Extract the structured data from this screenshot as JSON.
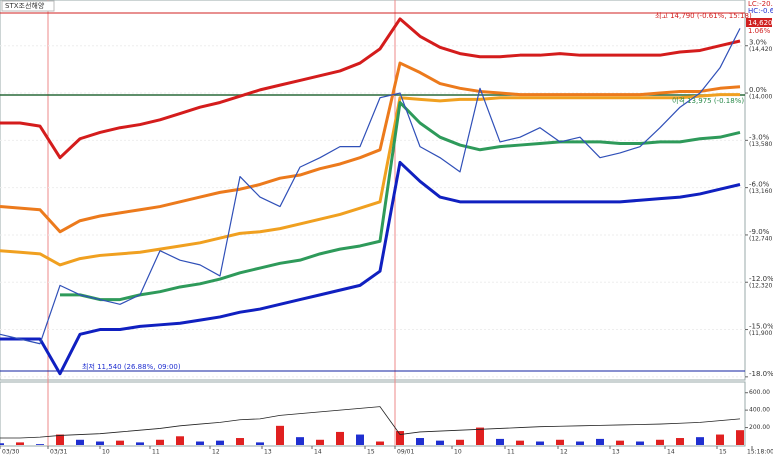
{
  "title": "STX조선해양",
  "corner_labels": [
    "LC:-20.86",
    "HC:-0.61"
  ],
  "annotations": [
    {
      "text": "최고 14,790 (-0.61%, 15:18)",
      "color": "#d02020"
    },
    {
      "text": "최저 11,540 (26.88%, 09:00)",
      "color": "#1f2fd0"
    },
    {
      "text": "이격 13,975 (-0.18%)",
      "color": "#2a8a4a"
    }
  ],
  "last_price": {
    "label": "14,620",
    "change": "1.06%"
  },
  "chart_data": [
    {
      "type": "line",
      "xlim": [
        0,
        37.25
      ],
      "ylim": [
        -18.2,
        5.9
      ],
      "yticks": [
        {
          "value": 3,
          "label": "3.0%"
        },
        {
          "value": 0,
          "label": "0.0%"
        },
        {
          "value": -3,
          "label": "-3.0%"
        },
        {
          "value": -6,
          "label": "-6.0%"
        },
        {
          "value": -9,
          "label": "-9.0%"
        },
        {
          "value": -12,
          "label": "-12.0%"
        },
        {
          "value": -15,
          "label": "-15.0%"
        },
        {
          "value": -18,
          "label": "-18.0%"
        }
      ],
      "y2lim": [
        11452,
        14826
      ],
      "y2ticks": [
        {
          "value": 14420,
          "label": "(14,420)"
        },
        {
          "value": 14000,
          "label": "(14,000)"
        },
        {
          "value": 13580,
          "label": "(13,580)"
        },
        {
          "value": 13160,
          "label": "(13,160)"
        },
        {
          "value": 12740,
          "label": "(12,740)"
        },
        {
          "value": 12320,
          "label": "(12,320)"
        },
        {
          "value": 11900,
          "label": "(11,900)"
        }
      ],
      "series": [
        {
          "color": "#d41c1c",
          "width": 3,
          "values": [
            -1.9,
            -1.9,
            -2.1,
            -4.1,
            -2.9,
            -2.5,
            -2.2,
            -2.0,
            -1.7,
            -1.3,
            -0.9,
            -0.6,
            -0.2,
            0.2,
            0.5,
            0.8,
            1.1,
            1.4,
            1.9,
            2.8,
            4.7,
            3.6,
            2.9,
            2.5,
            2.3,
            2.3,
            2.4,
            2.4,
            2.5,
            2.4,
            2.4,
            2.4,
            2.4,
            2.4,
            2.6,
            2.7,
            3.0,
            3.3
          ]
        },
        {
          "color": "#ec7a1c",
          "width": 3,
          "values": [
            -7.2,
            -7.3,
            -7.4,
            -8.8,
            -8.1,
            -7.8,
            -7.6,
            -7.4,
            -7.2,
            -6.9,
            -6.6,
            -6.3,
            -6.1,
            -5.8,
            -5.4,
            -5.2,
            -4.8,
            -4.5,
            -4.1,
            -3.6,
            1.9,
            1.3,
            0.6,
            0.3,
            0.1,
            0.0,
            -0.1,
            -0.1,
            -0.1,
            -0.1,
            -0.1,
            -0.1,
            -0.1,
            0.0,
            0.1,
            0.1,
            0.3,
            0.4
          ]
        },
        {
          "color": "#f0a020",
          "width": 3,
          "values": [
            -10.0,
            -10.1,
            -10.2,
            -10.9,
            -10.5,
            -10.3,
            -10.2,
            -10.1,
            -9.9,
            -9.7,
            -9.5,
            -9.2,
            -8.9,
            -8.8,
            -8.6,
            -8.3,
            -8.0,
            -7.7,
            -7.3,
            -6.9,
            -0.3,
            -0.4,
            -0.5,
            -0.4,
            -0.4,
            -0.3,
            -0.3,
            -0.3,
            -0.3,
            -0.3,
            -0.3,
            -0.3,
            -0.3,
            -0.3,
            -0.3,
            -0.2,
            -0.1,
            -0.1
          ]
        },
        {
          "color": "#2e9a5a",
          "width": 3,
          "values": [
            null,
            null,
            null,
            -12.8,
            -12.8,
            -13.1,
            -13.1,
            -12.8,
            -12.6,
            -12.3,
            -12.1,
            -11.8,
            -11.4,
            -11.1,
            -10.8,
            -10.6,
            -10.2,
            -9.9,
            -9.7,
            -9.4,
            -0.6,
            -1.9,
            -2.8,
            -3.3,
            -3.6,
            -3.4,
            -3.3,
            -3.2,
            -3.1,
            -3.1,
            -3.1,
            -3.2,
            -3.2,
            -3.1,
            -3.1,
            -2.9,
            -2.8,
            -2.5
          ]
        },
        {
          "color": "#1020c0",
          "width": 3,
          "values": [
            -15.6,
            -15.6,
            -15.6,
            -17.8,
            -15.3,
            -15.0,
            -15.0,
            -14.8,
            -14.7,
            -14.6,
            -14.4,
            -14.2,
            -13.9,
            -13.7,
            -13.4,
            -13.1,
            -12.8,
            -12.5,
            -12.2,
            -11.3,
            -4.4,
            -5.6,
            -6.6,
            -6.9,
            -6.9,
            -6.9,
            -6.9,
            -6.9,
            -6.9,
            -6.9,
            -6.9,
            -6.9,
            -6.8,
            -6.7,
            -6.6,
            -6.4,
            -6.1,
            -5.8
          ]
        },
        {
          "color": "#3050b8",
          "width": 1.2,
          "values": [
            -15.3,
            -15.6,
            -15.9,
            -12.2,
            -12.8,
            -13.1,
            -13.4,
            -12.8,
            -10.0,
            -10.6,
            -10.9,
            -11.6,
            -5.3,
            -6.6,
            -7.2,
            -4.7,
            -4.1,
            -3.4,
            -3.4,
            -0.3,
            0.0,
            -3.4,
            -4.1,
            -5.0,
            0.3,
            -3.1,
            -2.8,
            -2.2,
            -3.1,
            -2.8,
            -4.1,
            -3.8,
            -3.4,
            -2.2,
            -0.9,
            0.0,
            1.6,
            4.1
          ]
        }
      ]
    },
    {
      "type": "bar",
      "xlim": [
        0,
        37.25
      ],
      "ylim": [
        0,
        700
      ],
      "yticks": [
        {
          "value": 200,
          "label": "200.00"
        },
        {
          "value": 400,
          "label": "400.00"
        },
        {
          "value": 600,
          "label": "600.00"
        }
      ],
      "xticks": [
        {
          "value": 0,
          "label": "03/30"
        },
        {
          "value": 2.4,
          "label": "03/31"
        },
        {
          "value": 5,
          "label": "10"
        },
        {
          "value": 7.5,
          "label": "11"
        },
        {
          "value": 10.5,
          "label": "12"
        },
        {
          "value": 13.1,
          "label": "13"
        },
        {
          "value": 15.6,
          "label": "14"
        },
        {
          "value": 18.25,
          "label": "15"
        },
        {
          "value": 19.75,
          "label": "09/01"
        },
        {
          "value": 22.6,
          "label": "10"
        },
        {
          "value": 25.25,
          "label": "11"
        },
        {
          "value": 27.9,
          "label": "12"
        },
        {
          "value": 30.5,
          "label": "13"
        },
        {
          "value": 33.25,
          "label": "14"
        },
        {
          "value": 35.85,
          "label": "15"
        },
        {
          "value": 37.6,
          "label": "15:18:00"
        }
      ],
      "values": [
        20,
        30,
        10,
        120,
        60,
        40,
        50,
        30,
        60,
        100,
        40,
        50,
        80,
        30,
        220,
        90,
        60,
        150,
        120,
        40,
        160,
        80,
        50,
        60,
        200,
        70,
        50,
        40,
        60,
        40,
        70,
        50,
        40,
        60,
        80,
        90,
        120,
        170
      ],
      "colors": [
        "#1f2fd0",
        "#e02020",
        "#1f2fd0",
        "#e02020",
        "#1f2fd0",
        "#1f2fd0",
        "#e02020",
        "#1f2fd0",
        "#e02020",
        "#e02020",
        "#1f2fd0",
        "#1f2fd0",
        "#e02020",
        "#1f2fd0",
        "#e02020",
        "#1f2fd0",
        "#e02020",
        "#e02020",
        "#1f2fd0",
        "#e02020",
        "#e02020",
        "#1f2fd0",
        "#1f2fd0",
        "#e02020",
        "#e02020",
        "#1f2fd0",
        "#e02020",
        "#1f2fd0",
        "#e02020",
        "#1f2fd0",
        "#1f2fd0",
        "#e02020",
        "#1f2fd0",
        "#e02020",
        "#e02020",
        "#1f2fd0",
        "#e02020",
        "#e02020"
      ],
      "line": {
        "color": "#222222",
        "values": [
          80,
          80,
          90,
          110,
          120,
          130,
          150,
          170,
          190,
          220,
          240,
          260,
          290,
          300,
          340,
          360,
          380,
          400,
          420,
          440,
          120,
          150,
          160,
          170,
          180,
          190,
          200,
          210,
          215,
          220,
          225,
          230,
          235,
          240,
          250,
          260,
          280,
          300
        ]
      }
    }
  ]
}
